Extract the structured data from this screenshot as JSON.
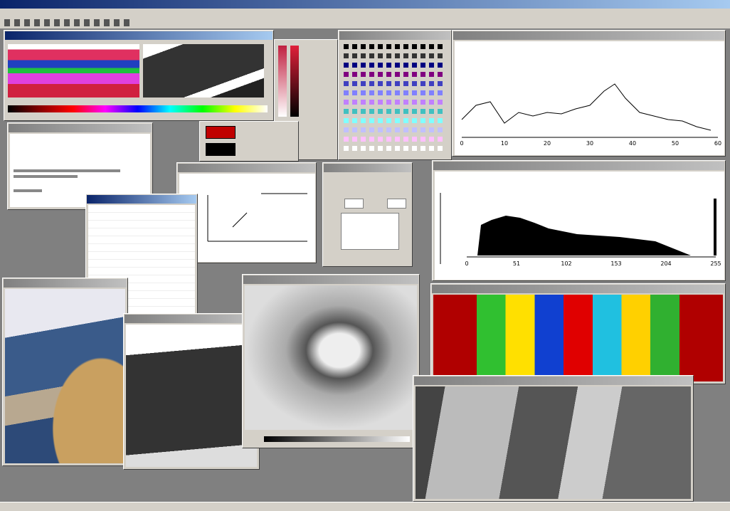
{
  "histogram": {
    "xticks": [
      "0",
      "51",
      "102",
      "153",
      "204",
      "255"
    ]
  },
  "line_chart": {
    "xticks": [
      "0",
      "10",
      "20",
      "30",
      "40",
      "50",
      "60"
    ]
  }
}
